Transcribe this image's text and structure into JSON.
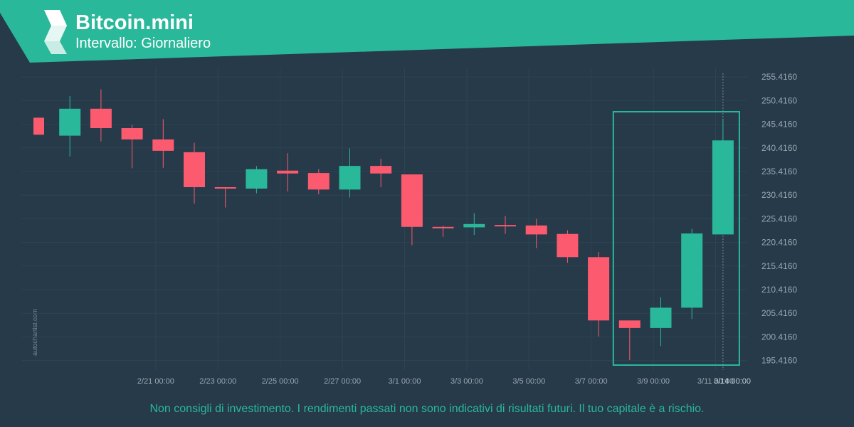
{
  "header": {
    "title": "Bitcoin.mini",
    "subtitle": "Intervallo: Giornaliero"
  },
  "watermark": "autochartist.com",
  "disclaimer": "Non consigli di investimento. I rendimenti passati non sono indicativi di risultati futuri. Il tuo capitale è a rischio.",
  "colors": {
    "banner": "#2ab89a",
    "background": "#263a4a",
    "bullish": "#2ab89a",
    "bearish": "#fc5a6e",
    "grid": "#2e4353",
    "axis_text": "#9aa7b2"
  },
  "chart_data": {
    "type": "candlestick",
    "ylim": [
      193.4,
      257.4
    ],
    "y_ticks": [
      "255.4160",
      "250.4160",
      "245.4160",
      "240.4160",
      "235.4160",
      "230.4160",
      "225.4160",
      "220.4160",
      "215.4160",
      "210.4160",
      "205.4160",
      "200.4160",
      "195.4160"
    ],
    "x_ticks": [
      {
        "label": "2/21 00:00",
        "index": 2
      },
      {
        "label": "2/23 00:00",
        "index": 4
      },
      {
        "label": "2/25 00:00",
        "index": 6
      },
      {
        "label": "2/27 00:00",
        "index": 8
      },
      {
        "label": "3/1 00:00",
        "index": 10
      },
      {
        "label": "3/3 00:00",
        "index": 12
      },
      {
        "label": "3/5 00:00",
        "index": 14
      },
      {
        "label": "3/7 00:00",
        "index": 16
      },
      {
        "label": "3/9 00:00",
        "index": 18
      },
      {
        "label": "3/11 00:00",
        "index": 20
      },
      {
        "label": "3/14 00:00",
        "index": 22.3,
        "highlight": true
      }
    ],
    "candles": [
      {
        "o": 246.8,
        "h": 246.8,
        "l": 243.2,
        "c": 243.2
      },
      {
        "o": 243.0,
        "h": 251.4,
        "l": 238.6,
        "c": 248.7
      },
      {
        "o": 248.7,
        "h": 252.8,
        "l": 241.8,
        "c": 244.6
      },
      {
        "o": 244.6,
        "h": 245.3,
        "l": 236.1,
        "c": 242.2
      },
      {
        "o": 242.2,
        "h": 246.5,
        "l": 236.2,
        "c": 239.8
      },
      {
        "o": 239.5,
        "h": 241.5,
        "l": 228.6,
        "c": 232.1
      },
      {
        "o": 232.1,
        "h": 232.1,
        "l": 227.8,
        "c": 232.0
      },
      {
        "o": 231.8,
        "h": 236.6,
        "l": 230.8,
        "c": 235.9
      },
      {
        "o": 235.6,
        "h": 239.3,
        "l": 231.2,
        "c": 235.0
      },
      {
        "o": 235.1,
        "h": 235.9,
        "l": 230.6,
        "c": 231.6
      },
      {
        "o": 231.6,
        "h": 240.3,
        "l": 229.9,
        "c": 236.6
      },
      {
        "o": 236.6,
        "h": 238.1,
        "l": 232.1,
        "c": 235.0
      },
      {
        "o": 234.8,
        "h": 234.8,
        "l": 219.8,
        "c": 223.7
      },
      {
        "o": 223.7,
        "h": 223.9,
        "l": 221.6,
        "c": 223.6
      },
      {
        "o": 223.6,
        "h": 226.6,
        "l": 222.0,
        "c": 224.3
      },
      {
        "o": 224.1,
        "h": 226.0,
        "l": 222.2,
        "c": 224.0
      },
      {
        "o": 224.0,
        "h": 225.4,
        "l": 219.2,
        "c": 222.1
      },
      {
        "o": 222.2,
        "h": 223.0,
        "l": 216.1,
        "c": 217.3
      },
      {
        "o": 217.3,
        "h": 218.4,
        "l": 200.5,
        "c": 203.9
      },
      {
        "o": 203.9,
        "h": 203.9,
        "l": 195.5,
        "c": 202.3
      },
      {
        "o": 202.3,
        "h": 208.8,
        "l": 198.5,
        "c": 206.6
      },
      {
        "o": 206.6,
        "h": 223.3,
        "l": 204.2,
        "c": 222.3
      },
      {
        "o": 222.1,
        "h": 246.6,
        "l": 222.1,
        "c": 242.0
      }
    ],
    "highlight_range": {
      "from_index": 19,
      "to_index": 22
    }
  }
}
